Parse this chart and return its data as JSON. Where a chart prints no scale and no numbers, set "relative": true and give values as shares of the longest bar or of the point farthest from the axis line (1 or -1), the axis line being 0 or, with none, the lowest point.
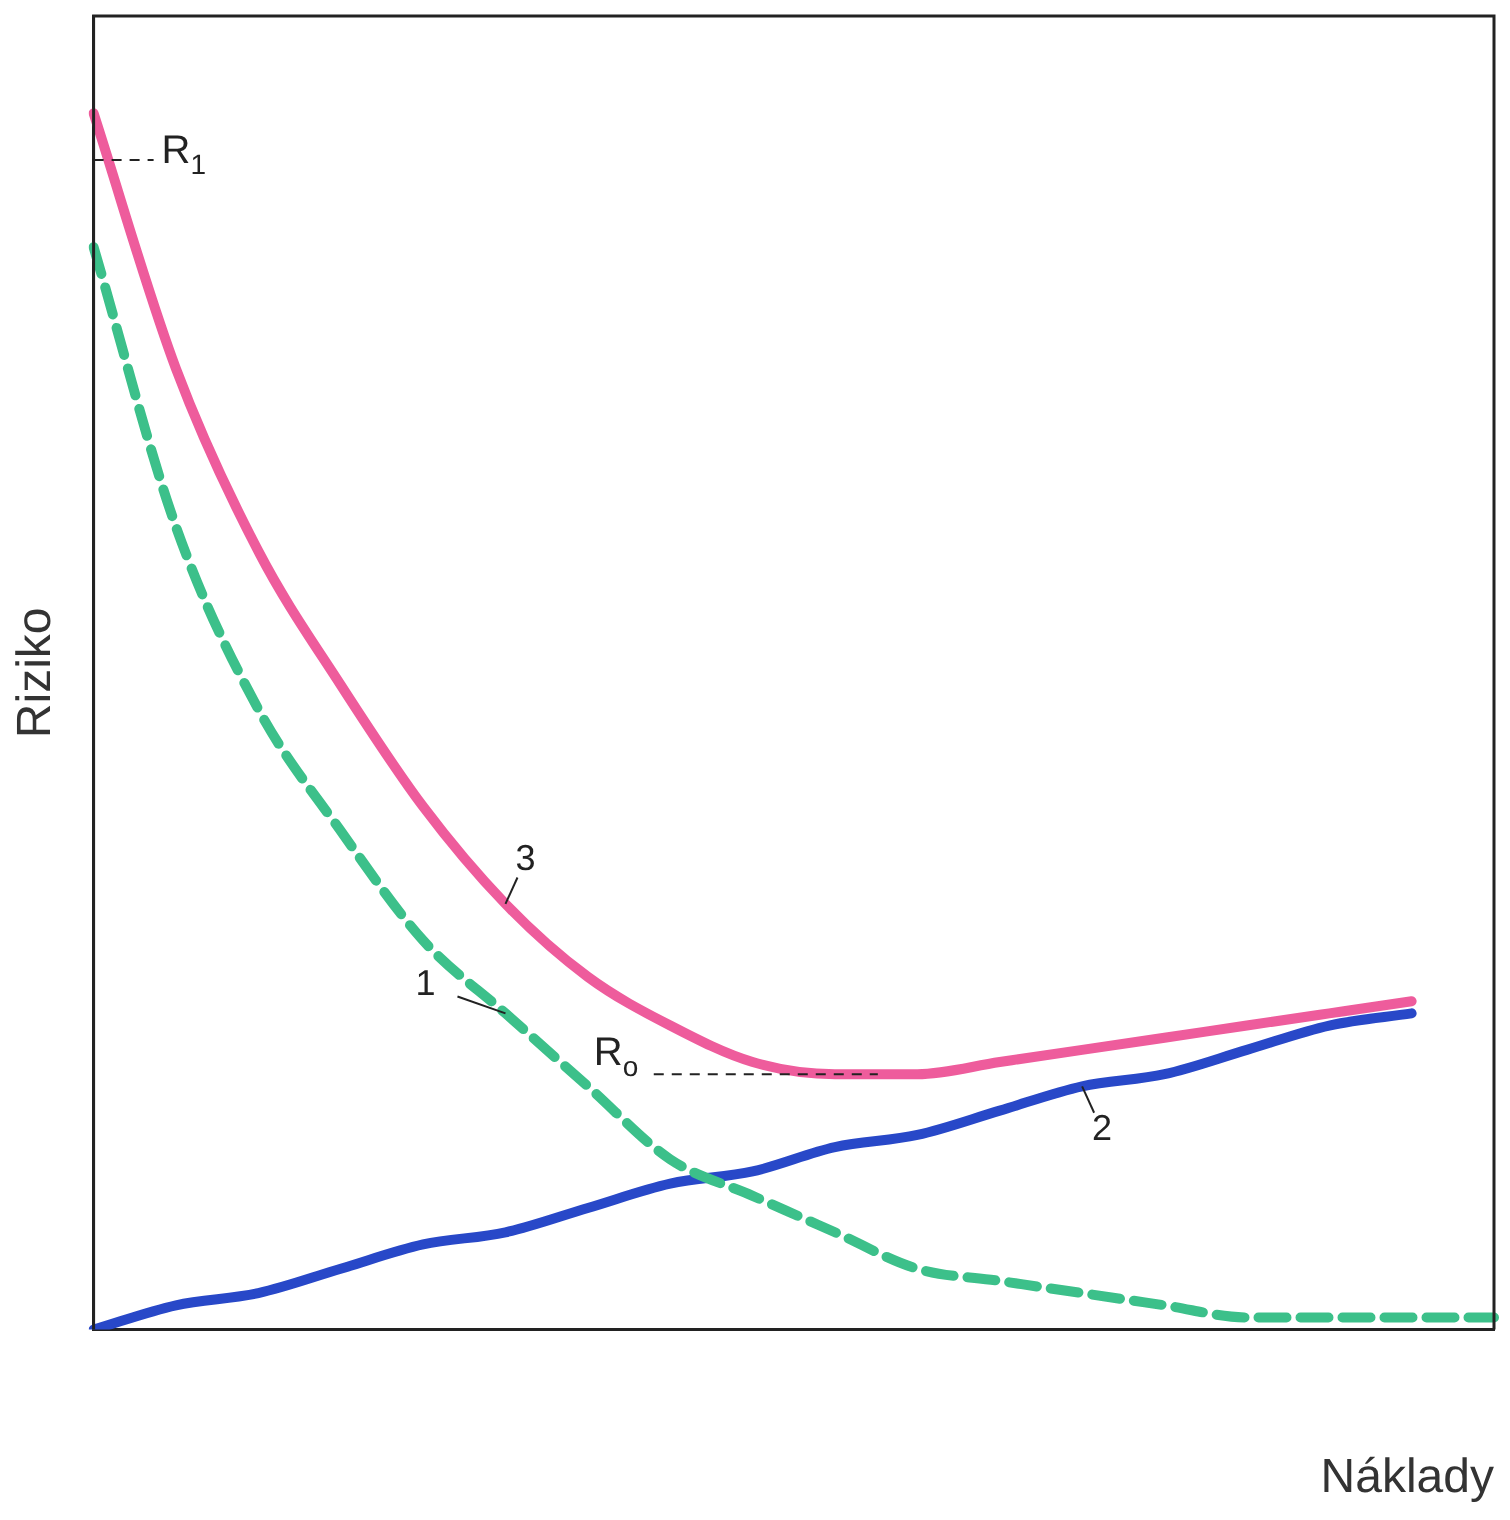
{
  "chart_data": {
    "type": "line",
    "relative": true,
    "xlabel": "Náklady",
    "ylabel": "Riziko",
    "categories": [
      null,
      null,
      null,
      null,
      null,
      null,
      null,
      null,
      null,
      null,
      null,
      null,
      null,
      null,
      null,
      null,
      null,
      null
    ],
    "series": [
      {
        "name": "1",
        "color": "#3cc08a",
        "line_style": "dashed",
        "values": [
          0.89,
          0.66,
          0.51,
          0.41,
          0.32,
          0.26,
          0.2,
          0.14,
          0.11,
          0.08,
          0.05,
          0.04,
          0.03,
          0.02,
          0.01,
          0.01,
          0.01,
          0.01
        ]
      },
      {
        "name": "2",
        "color": "#2848c8",
        "values": [
          0,
          0.02,
          0.03,
          0.05,
          0.07,
          0.08,
          0.1,
          0.12,
          0.13,
          0.15,
          0.16,
          0.18,
          0.2,
          0.21,
          0.23,
          0.25,
          0.26,
          null
        ]
      },
      {
        "name": "3",
        "color": "#ee5c9c",
        "values": [
          1,
          0.79,
          0.64,
          0.53,
          0.43,
          0.35,
          0.29,
          0.25,
          0.22,
          0.21,
          0.21,
          0.22,
          0.23,
          0.24,
          0.25,
          0.26,
          0.27,
          null
        ]
      }
    ],
    "annotations": [
      "R$_{1}$",
      "R$_{o}$"
    ],
    "grid": false,
    "legend": false,
    "marker": "none"
  }
}
